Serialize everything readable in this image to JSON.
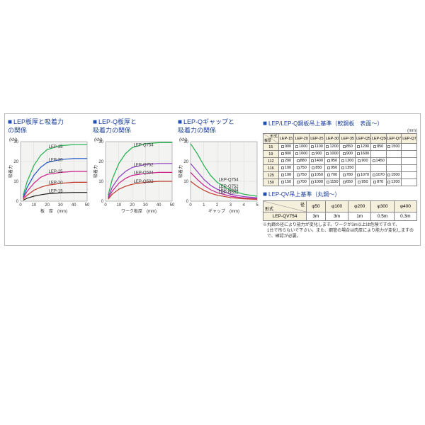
{
  "colors": {
    "title": "#1a3f9a",
    "grid": "#cfcfcf",
    "axis": "#555",
    "bg": "#f3f3f1"
  },
  "chart1": {
    "title_prefix": "■",
    "title": "LEP板厚と吸着力\nの関係",
    "y_unit": "(kN)",
    "y_label": "吸着力",
    "x_label": "板　厚　(mm)",
    "xlim": [
      0,
      50
    ],
    "xticks": [
      0,
      10,
      20,
      30,
      40,
      50
    ],
    "ylim": [
      0,
      30
    ],
    "yticks": [
      0,
      10,
      20,
      30
    ],
    "series": [
      {
        "name": "LEP-35",
        "color": "#1bb04a",
        "pts": [
          [
            2,
            3
          ],
          [
            5,
            10
          ],
          [
            10,
            18
          ],
          [
            15,
            23
          ],
          [
            20,
            26
          ],
          [
            30,
            28
          ],
          [
            40,
            28.5
          ],
          [
            50,
            28.5
          ]
        ]
      },
      {
        "name": "LEP-30",
        "color": "#1a52c4",
        "pts": [
          [
            2,
            2
          ],
          [
            5,
            7
          ],
          [
            10,
            13
          ],
          [
            15,
            17
          ],
          [
            20,
            19.5
          ],
          [
            30,
            21
          ],
          [
            40,
            21.5
          ],
          [
            50,
            21.5
          ]
        ]
      },
      {
        "name": "LEP-25",
        "color": "#c81f8a",
        "pts": [
          [
            2,
            1.5
          ],
          [
            5,
            5
          ],
          [
            10,
            9
          ],
          [
            15,
            12
          ],
          [
            20,
            13.5
          ],
          [
            30,
            14.5
          ],
          [
            40,
            15
          ],
          [
            50,
            15
          ]
        ]
      },
      {
        "name": "LEP-20",
        "color": "#c0392b",
        "pts": [
          [
            2,
            1
          ],
          [
            5,
            3
          ],
          [
            10,
            5.5
          ],
          [
            15,
            7
          ],
          [
            20,
            8
          ],
          [
            30,
            9
          ],
          [
            40,
            9.5
          ],
          [
            50,
            9.5
          ]
        ]
      },
      {
        "name": "LEP-15",
        "color": "#222",
        "pts": [
          [
            2,
            0.5
          ],
          [
            5,
            1.5
          ],
          [
            10,
            2.5
          ],
          [
            15,
            3.2
          ],
          [
            20,
            3.7
          ],
          [
            30,
            4.2
          ],
          [
            40,
            4.4
          ],
          [
            50,
            4.4
          ]
        ]
      }
    ]
  },
  "chart2": {
    "title_prefix": "■",
    "title": "LEP-Q板厚と\n吸着力の関係",
    "y_unit": "(kN)",
    "y_label": "吸着力",
    "x_label": "ワーク板厚　(mm)",
    "xlim": [
      0,
      50
    ],
    "xticks": [
      0,
      10,
      20,
      30,
      40,
      50
    ],
    "ylim": [
      0,
      30
    ],
    "yticks": [
      0,
      10,
      20,
      30
    ],
    "series": [
      {
        "name": "LEP-Q754",
        "color": "#1bb04a",
        "pts": [
          [
            2,
            3
          ],
          [
            5,
            11
          ],
          [
            10,
            19
          ],
          [
            15,
            24
          ],
          [
            20,
            27
          ],
          [
            30,
            29
          ],
          [
            40,
            29.5
          ],
          [
            50,
            29.5
          ]
        ]
      },
      {
        "name": "LEP-Q752",
        "color": "#8e3ac2",
        "pts": [
          [
            2,
            2
          ],
          [
            5,
            7
          ],
          [
            10,
            12
          ],
          [
            15,
            15
          ],
          [
            20,
            17
          ],
          [
            30,
            18.5
          ],
          [
            40,
            19
          ],
          [
            50,
            19
          ]
        ]
      },
      {
        "name": "LEP-Q504",
        "color": "#c81f8a",
        "pts": [
          [
            2,
            1.5
          ],
          [
            5,
            5
          ],
          [
            10,
            9
          ],
          [
            15,
            11.5
          ],
          [
            20,
            13
          ],
          [
            30,
            14
          ],
          [
            40,
            14.5
          ],
          [
            50,
            14.5
          ]
        ]
      },
      {
        "name": "LEP-Q502",
        "color": "#c0392b",
        "pts": [
          [
            2,
            1
          ],
          [
            5,
            3.5
          ],
          [
            10,
            6
          ],
          [
            15,
            7.5
          ],
          [
            20,
            8.5
          ],
          [
            30,
            9.5
          ],
          [
            40,
            10
          ],
          [
            50,
            10
          ]
        ]
      }
    ]
  },
  "chart3": {
    "title_prefix": "■",
    "title": "LEP-Qギャップと\n吸着力の関係",
    "y_unit": "(kN)",
    "y_label": "吸着力",
    "x_label": "ギャップ　(mm)",
    "xlim": [
      0,
      5
    ],
    "xticks": [
      0,
      1,
      2,
      3,
      4,
      5
    ],
    "ylim": [
      0,
      30
    ],
    "yticks": [
      0,
      10,
      20,
      30
    ],
    "series": [
      {
        "name": "LEP-Q754",
        "color": "#1bb04a",
        "pts": [
          [
            0,
            29
          ],
          [
            0.5,
            24
          ],
          [
            1,
            18
          ],
          [
            1.5,
            13
          ],
          [
            2,
            9.5
          ],
          [
            3,
            5.5
          ],
          [
            4,
            3.5
          ],
          [
            5,
            2.5
          ]
        ]
      },
      {
        "name": "LEP-Q752",
        "color": "#8e3ac2",
        "pts": [
          [
            0,
            19
          ],
          [
            0.5,
            15
          ],
          [
            1,
            11
          ],
          [
            1.5,
            8
          ],
          [
            2,
            6
          ],
          [
            3,
            3.5
          ],
          [
            4,
            2.3
          ],
          [
            5,
            1.7
          ]
        ]
      },
      {
        "name": "LEP-Q504",
        "color": "#c81f8a",
        "pts": [
          [
            0,
            14.5
          ],
          [
            0.5,
            11
          ],
          [
            1,
            8
          ],
          [
            1.5,
            5.8
          ],
          [
            2,
            4.3
          ],
          [
            3,
            2.5
          ],
          [
            4,
            1.6
          ],
          [
            5,
            1.2
          ]
        ]
      },
      {
        "name": "LEP-Q502",
        "color": "#c0392b",
        "pts": [
          [
            0,
            10
          ],
          [
            0.5,
            7.5
          ],
          [
            1,
            5.5
          ],
          [
            1.5,
            4
          ],
          [
            2,
            3
          ],
          [
            3,
            1.8
          ],
          [
            4,
            1.2
          ],
          [
            5,
            0.9
          ]
        ]
      }
    ]
  },
  "table1": {
    "title_prefix": "■",
    "title": "LEP/LEP-Q鋼板吊上基準（軟鋼板　表面～）",
    "unit": "(mm)",
    "corner_top": "形式",
    "corner_left": "板厚",
    "cols": [
      "LEP-15",
      "LEP-20",
      "LEP-25",
      "LEP-30",
      "LEP-35",
      "LEP-Q502",
      "LEP-Q504",
      "LEP-Q752",
      "LEP-Q754"
    ],
    "rows": [
      {
        "h": "15",
        "c": [
          "900",
          "1000",
          "1100",
          "1200",
          "850",
          "1200",
          "850",
          "1500"
        ]
      },
      {
        "h": "19",
        "c": [
          "800",
          "1000",
          "900",
          "1000",
          "900",
          "1600"
        ]
      },
      {
        "h": "112",
        "c": [
          "200",
          "880",
          "1400",
          "950",
          "1200",
          "900",
          "1450"
        ]
      },
      {
        "h": "116",
        "c": [
          "100",
          "750",
          "850",
          "950",
          "1350"
        ]
      },
      {
        "h": "125",
        "c": [
          "100",
          "750",
          "1050",
          "700",
          "780",
          "1070",
          "1070",
          "1500"
        ]
      },
      {
        "h": "150",
        "c": [
          "150",
          "700",
          "1000",
          "1150",
          "650",
          "950",
          "870",
          "1200"
        ]
      }
    ]
  },
  "table2": {
    "title_prefix": "■",
    "title": "LEP-QV吊上基準（丸鋼～）",
    "corner_top": "径",
    "corner_left": "形式",
    "cols": [
      "φ50",
      "φ100",
      "φ200",
      "φ300",
      "φ400"
    ],
    "rows": [
      {
        "h": "LEP-QV754",
        "c": [
          "3m",
          "3m",
          "1m",
          "0.5m",
          "0.3m"
        ]
      }
    ]
  },
  "footnote": "※丸鋼の径により能力が変化します。ワークが3m以上は危険ですので、\n　1台で吊らないで下さい。また、鋼管の場合は肉厚により能力が変化しますの\n　で、確認が必要。"
}
